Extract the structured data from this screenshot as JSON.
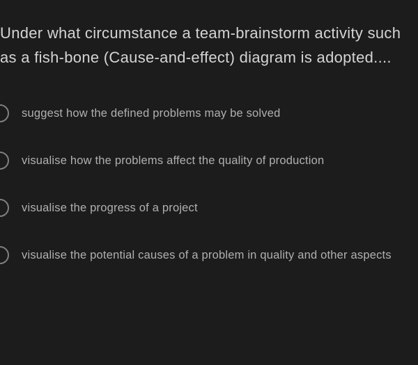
{
  "question": {
    "text": "Under what circumstance a team-brainstorm activity such as a fish-bone (Cause-and-effect) diagram is adopted...."
  },
  "options": [
    {
      "label": "suggest how the defined problems may be solved"
    },
    {
      "label": "visualise how the problems affect the quality of production"
    },
    {
      "label": "visualise the progress of a project"
    },
    {
      "label": "visualise the potential causes of a problem in quality and other aspects"
    }
  ],
  "colors": {
    "background": "#1c1c1c",
    "question_text": "#d4d4d4",
    "option_text": "#b0b0b0",
    "radio_border": "#808080"
  },
  "typography": {
    "question_fontsize": 22,
    "option_fontsize": 16.5,
    "font_weight": 300,
    "line_height": 1.6
  }
}
